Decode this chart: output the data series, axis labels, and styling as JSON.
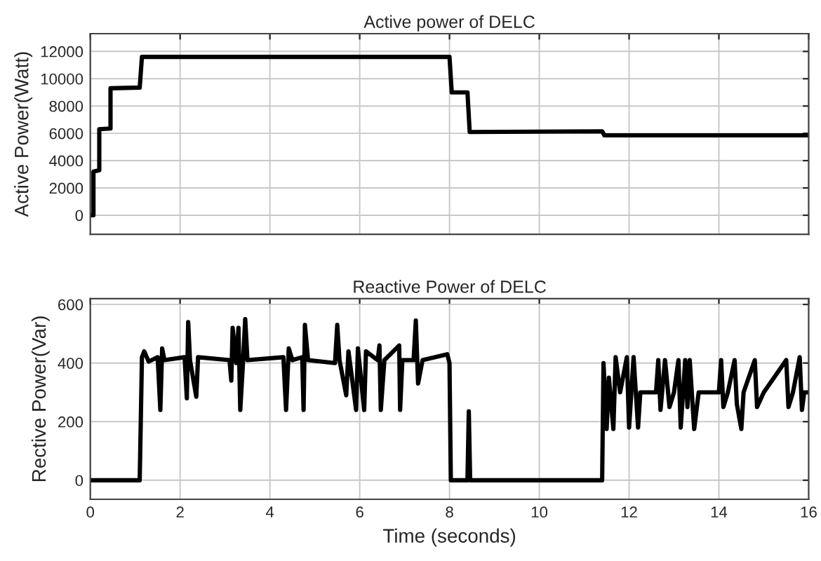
{
  "chart_data": [
    {
      "type": "line",
      "title": "Active power of DELC",
      "ylabel": "Active Power(Watt)",
      "xlim": [
        0,
        16
      ],
      "xticks": [
        0,
        2,
        4,
        6,
        8,
        10,
        12,
        14,
        16
      ],
      "ylim": [
        -1400,
        13300
      ],
      "yticks": [
        0,
        2000,
        4000,
        6000,
        8000,
        10000,
        12000
      ],
      "tick_labels": "y",
      "grid": true,
      "series": [
        {
          "color": "#000000",
          "x": [
            0,
            0.07,
            0.07,
            0.2,
            0.2,
            0.45,
            0.45,
            1.1,
            1.15,
            8.0,
            8.05,
            8.4,
            8.45,
            11.4,
            11.45,
            16
          ],
          "values": [
            0,
            0,
            3200,
            3300,
            6300,
            6350,
            9300,
            9350,
            11600,
            11600,
            9000,
            9000,
            6100,
            6150,
            5850,
            5850
          ]
        }
      ]
    },
    {
      "type": "line",
      "title": "Reactive Power of DELC",
      "xlabel": "Time (seconds)",
      "ylabel": "Rective Power(Var)",
      "xlim": [
        0,
        16
      ],
      "xticks": [
        0,
        2,
        4,
        6,
        8,
        10,
        12,
        14,
        16
      ],
      "ylim": [
        -65,
        620
      ],
      "yticks": [
        0,
        200,
        400,
        600
      ],
      "grid": true,
      "series": [
        {
          "color": "#000000",
          "x": [
            0,
            1.1,
            1.15,
            1.2,
            1.3,
            1.5,
            1.56,
            1.6,
            1.65,
            2.1,
            2.15,
            2.18,
            2.22,
            2.36,
            2.4,
            3.1,
            3.14,
            3.17,
            3.25,
            3.3,
            3.34,
            3.4,
            3.45,
            3.5,
            4.3,
            4.36,
            4.42,
            4.5,
            4.72,
            4.75,
            4.78,
            4.85,
            5.45,
            5.5,
            5.55,
            5.7,
            5.75,
            5.92,
            5.96,
            6.1,
            6.14,
            6.4,
            6.44,
            6.47,
            6.55,
            6.88,
            6.9,
            6.95,
            7.2,
            7.25,
            7.3,
            7.4,
            7.95,
            8.0,
            8.03,
            8.4,
            8.43,
            8.46,
            11.4,
            11.43,
            11.5,
            11.55,
            11.65,
            11.7,
            11.8,
            11.95,
            12.0,
            12.1,
            12.2,
            12.25,
            12.6,
            12.65,
            12.7,
            12.8,
            12.9,
            13.0,
            13.1,
            13.15,
            13.25,
            13.3,
            13.35,
            13.45,
            13.55,
            14.0,
            14.05,
            14.1,
            14.2,
            14.35,
            14.4,
            14.5,
            14.55,
            14.8,
            14.85,
            15.0,
            15.5,
            15.55,
            15.65,
            15.8,
            15.85,
            15.9,
            16
          ],
          "values": [
            0,
            0,
            420,
            440,
            405,
            420,
            240,
            450,
            410,
            420,
            280,
            540,
            410,
            285,
            420,
            410,
            340,
            520,
            400,
            520,
            240,
            400,
            550,
            410,
            420,
            240,
            450,
            410,
            420,
            240,
            530,
            410,
            400,
            530,
            410,
            290,
            440,
            240,
            450,
            240,
            440,
            410,
            460,
            240,
            410,
            460,
            240,
            410,
            410,
            545,
            330,
            410,
            430,
            400,
            0,
            0,
            235,
            0,
            0,
            400,
            175,
            350,
            175,
            420,
            300,
            420,
            180,
            420,
            180,
            300,
            300,
            410,
            240,
            410,
            250,
            300,
            410,
            180,
            410,
            250,
            410,
            175,
            300,
            300,
            410,
            250,
            300,
            410,
            260,
            175,
            300,
            410,
            250,
            300,
            410,
            250,
            300,
            420,
            240,
            300,
            300
          ]
        }
      ]
    }
  ]
}
